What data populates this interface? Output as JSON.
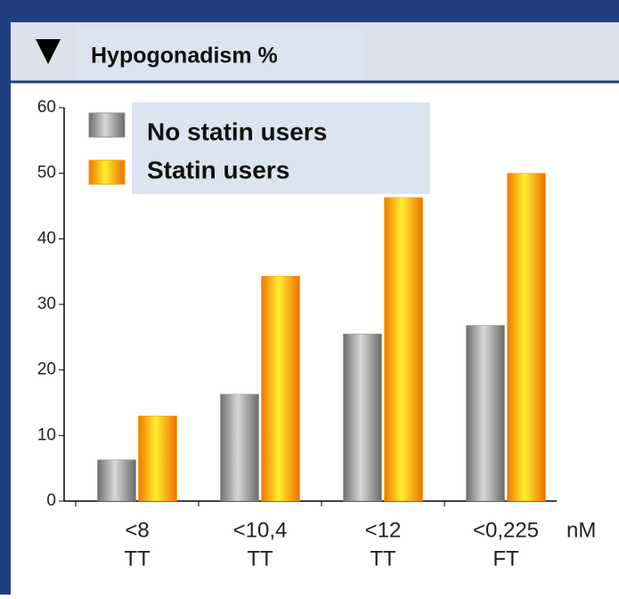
{
  "header": {
    "title": "Hypogonadism %"
  },
  "chart_data": {
    "type": "bar",
    "categories": [
      "<8",
      "<10,4",
      "<12",
      "<0,225"
    ],
    "category_sublabels": [
      "TT",
      "TT",
      "TT",
      "FT"
    ],
    "x_unit": "nM",
    "series": [
      {
        "name": "No statin users",
        "color": "#8c8c8c",
        "values": [
          6.3,
          16.3,
          25.5,
          26.8
        ]
      },
      {
        "name": "Statin users",
        "color": "#f5a000",
        "values": [
          13,
          34.3,
          46.3,
          50
        ]
      }
    ],
    "ylim": [
      0,
      60
    ],
    "yticks": [
      0,
      10,
      20,
      30,
      40,
      50,
      60
    ],
    "grid": false,
    "legend": "upper left"
  }
}
